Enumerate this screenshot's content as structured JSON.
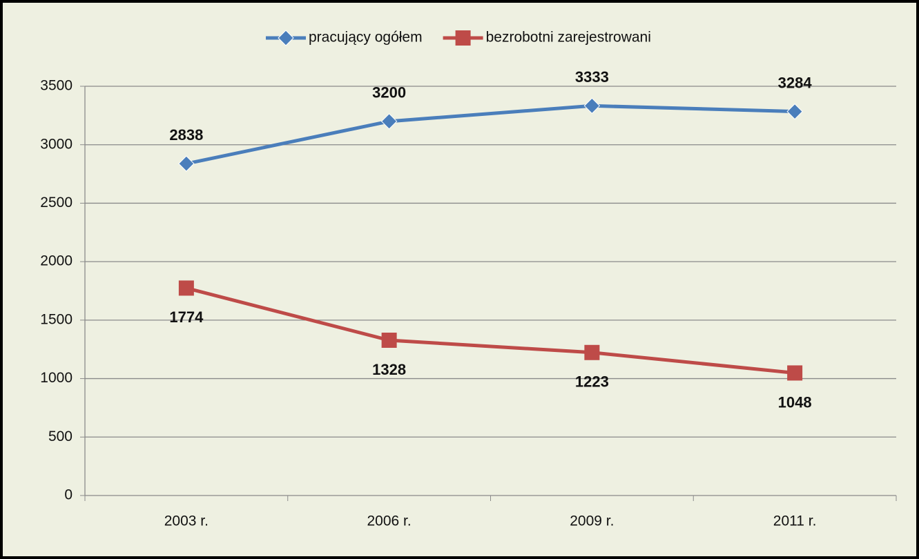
{
  "chart_data": {
    "type": "line",
    "categories": [
      "2003 r.",
      "2006 r.",
      "2009 r.",
      "2011 r."
    ],
    "series": [
      {
        "name": "pracujący ogółem",
        "color": "#4a7ebb",
        "marker": "diamond",
        "values": [
          2838,
          3200,
          3333,
          3284
        ]
      },
      {
        "name": "bezrobotni zarejestrowani",
        "color": "#be4b48",
        "marker": "square",
        "values": [
          1774,
          1328,
          1223,
          1048
        ]
      }
    ],
    "ylim": [
      0,
      3500
    ],
    "yticks": [
      0,
      500,
      1000,
      1500,
      2000,
      2500,
      3000,
      3500
    ],
    "grid": true,
    "legend": "top"
  }
}
